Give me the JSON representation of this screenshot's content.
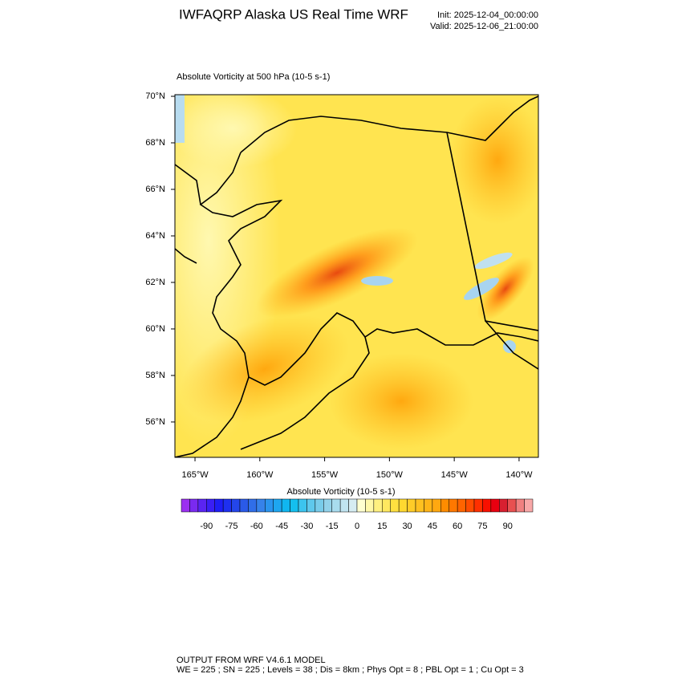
{
  "header": {
    "title": "IWFAQRP Alaska US Real Time WRF",
    "init": "Init: 2025-12-04_00:00:00",
    "valid": "Valid: 2025-12-06_21:00:00"
  },
  "chart_data": {
    "type": "map",
    "title": "Absolute Vorticity at 500 hPa   (10-5 s-1)",
    "xlim": [
      -166.55,
      -138.51
    ],
    "ylim": [
      54.48,
      70.07
    ],
    "xticks": [
      {
        "value": -165,
        "label": "165°W"
      },
      {
        "value": -160,
        "label": "160°W"
      },
      {
        "value": -155,
        "label": "155°W"
      },
      {
        "value": -150,
        "label": "150°W"
      },
      {
        "value": -145,
        "label": "145°W"
      },
      {
        "value": -140,
        "label": "140°W"
      }
    ],
    "yticks": [
      {
        "value": 56,
        "label": "56°N"
      },
      {
        "value": 58,
        "label": "58°N"
      },
      {
        "value": 60,
        "label": "60°N"
      },
      {
        "value": 62,
        "label": "62°N"
      },
      {
        "value": 64,
        "label": "64°N"
      },
      {
        "value": 66,
        "label": "66°N"
      },
      {
        "value": 68,
        "label": "68°N"
      },
      {
        "value": 70,
        "label": "70°N"
      }
    ],
    "colorbar": {
      "title": "Absolute Vorticity  (10-5 s-1)",
      "lim": [
        -105,
        105
      ],
      "ticks": [
        -90,
        -75,
        -60,
        -45,
        -30,
        -15,
        0,
        15,
        30,
        45,
        60,
        75,
        90
      ],
      "colors": [
        "#9b30f0",
        "#7a2af0",
        "#5a24f2",
        "#3a1ff5",
        "#1e1ef5",
        "#1e30f0",
        "#2446ea",
        "#2a5ae8",
        "#306ee8",
        "#3682ea",
        "#2a94ee",
        "#1ea6f0",
        "#10b6f0",
        "#14bfee",
        "#3cc4ee",
        "#5ec8ec",
        "#78ccea",
        "#92d2ea",
        "#a8dcee",
        "#c0e4f0",
        "#d6ecf2",
        "#ffffd0",
        "#fff8a8",
        "#fff080",
        "#ffe860",
        "#ffe040",
        "#ffd830",
        "#ffcc28",
        "#ffc020",
        "#ffb418",
        "#ffa810",
        "#ff8c00",
        "#ff7800",
        "#ff6400",
        "#ff4c00",
        "#ff3000",
        "#f81000",
        "#e80010",
        "#d82030",
        "#e85050",
        "#f08080",
        "#f8a8a8"
      ]
    }
  },
  "footer": {
    "line1": "OUTPUT FROM WRF V4.6.1 MODEL",
    "line2": "WE = 225 ; SN = 225 ; Levels = 38 ; Dis = 8km ; Phys Opt = 8 ; PBL Opt = 1 ; Cu Opt = 3"
  }
}
